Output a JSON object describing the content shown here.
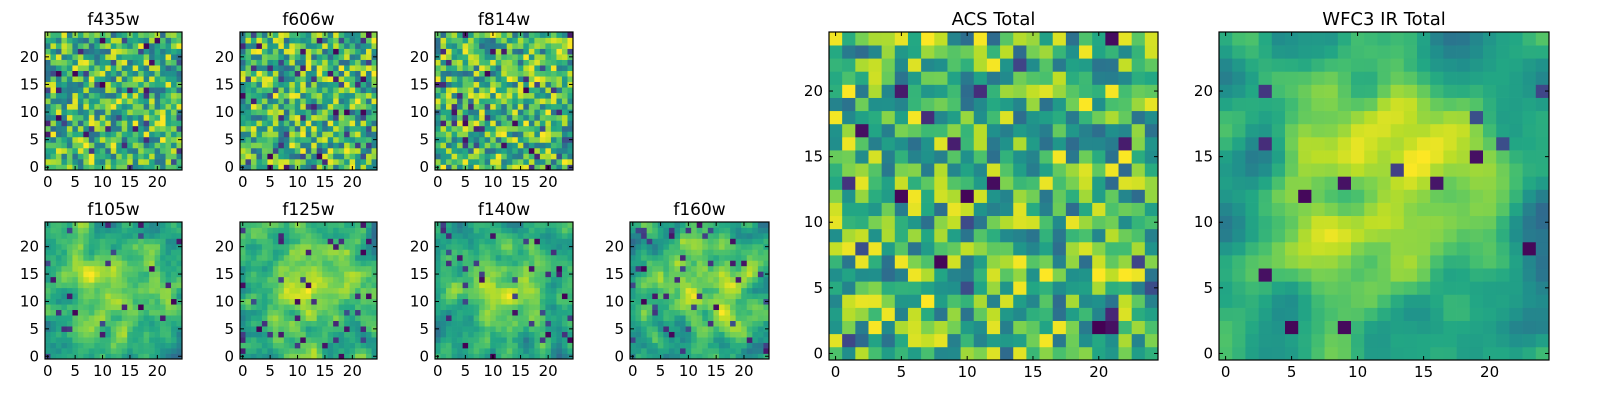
{
  "figure": {
    "background": "#ffffff"
  },
  "chart_data": [
    {
      "id": "f435w",
      "type": "heatmap",
      "title": "f435w",
      "grid_size": 25,
      "xlim": [
        0,
        25
      ],
      "ylim": [
        0,
        25
      ],
      "xticks": [
        0,
        5,
        10,
        15,
        20
      ],
      "yticks": [
        0,
        5,
        10,
        15,
        20
      ],
      "colormap": "viridis",
      "seed": 11,
      "smooth": 0,
      "dark_fraction": 0.07
    },
    {
      "id": "f606w",
      "type": "heatmap",
      "title": "f606w",
      "grid_size": 25,
      "xlim": [
        0,
        25
      ],
      "ylim": [
        0,
        25
      ],
      "xticks": [
        0,
        5,
        10,
        15,
        20
      ],
      "yticks": [
        0,
        5,
        10,
        15,
        20
      ],
      "colormap": "viridis",
      "seed": 23,
      "smooth": 0,
      "dark_fraction": 0.07
    },
    {
      "id": "f814w",
      "type": "heatmap",
      "title": "f814w",
      "grid_size": 25,
      "xlim": [
        0,
        25
      ],
      "ylim": [
        0,
        25
      ],
      "xticks": [
        0,
        5,
        10,
        15,
        20
      ],
      "yticks": [
        0,
        5,
        10,
        15,
        20
      ],
      "colormap": "viridis",
      "seed": 37,
      "smooth": 0,
      "dark_fraction": 0.07
    },
    {
      "id": "f105w",
      "type": "heatmap",
      "title": "f105w",
      "grid_size": 25,
      "xlim": [
        0,
        25
      ],
      "ylim": [
        0,
        25
      ],
      "xticks": [
        0,
        5,
        10,
        15,
        20
      ],
      "yticks": [
        0,
        5,
        10,
        15,
        20
      ],
      "colormap": "viridis",
      "seed": 41,
      "smooth": 1,
      "dark_fraction": 0.05
    },
    {
      "id": "f125w",
      "type": "heatmap",
      "title": "f125w",
      "grid_size": 25,
      "xlim": [
        0,
        25
      ],
      "ylim": [
        0,
        25
      ],
      "xticks": [
        0,
        5,
        10,
        15,
        20
      ],
      "yticks": [
        0,
        5,
        10,
        15,
        20
      ],
      "colormap": "viridis",
      "seed": 53,
      "smooth": 1,
      "dark_fraction": 0.05
    },
    {
      "id": "f140w",
      "type": "heatmap",
      "title": "f140w",
      "grid_size": 25,
      "xlim": [
        0,
        25
      ],
      "ylim": [
        0,
        25
      ],
      "xticks": [
        0,
        5,
        10,
        15,
        20
      ],
      "yticks": [
        0,
        5,
        10,
        15,
        20
      ],
      "colormap": "viridis",
      "seed": 67,
      "smooth": 1,
      "dark_fraction": 0.05
    },
    {
      "id": "f160w",
      "type": "heatmap",
      "title": "f160w",
      "grid_size": 25,
      "xlim": [
        0,
        25
      ],
      "ylim": [
        0,
        25
      ],
      "xticks": [
        0,
        5,
        10,
        15,
        20
      ],
      "yticks": [
        0,
        5,
        10,
        15,
        20
      ],
      "colormap": "viridis",
      "seed": 79,
      "smooth": 1,
      "dark_fraction": 0.06
    },
    {
      "id": "acs_total",
      "type": "heatmap",
      "title": "ACS Total",
      "grid_size": 25,
      "xlim": [
        0,
        25
      ],
      "ylim": [
        0,
        25
      ],
      "xticks": [
        0,
        5,
        10,
        15,
        20
      ],
      "yticks": [
        0,
        5,
        10,
        15,
        20
      ],
      "colormap": "viridis",
      "seed": 97,
      "smooth": 0,
      "dark_fraction": 0.04
    },
    {
      "id": "wfc3_total",
      "type": "heatmap",
      "title": "WFC3 IR Total",
      "grid_size": 25,
      "xlim": [
        0,
        25
      ],
      "ylim": [
        0,
        25
      ],
      "xticks": [
        0,
        5,
        10,
        15,
        20
      ],
      "yticks": [
        0,
        5,
        10,
        15,
        20
      ],
      "colormap": "viridis",
      "seed": 113,
      "smooth": 2,
      "dark_fraction": 0.03
    }
  ]
}
